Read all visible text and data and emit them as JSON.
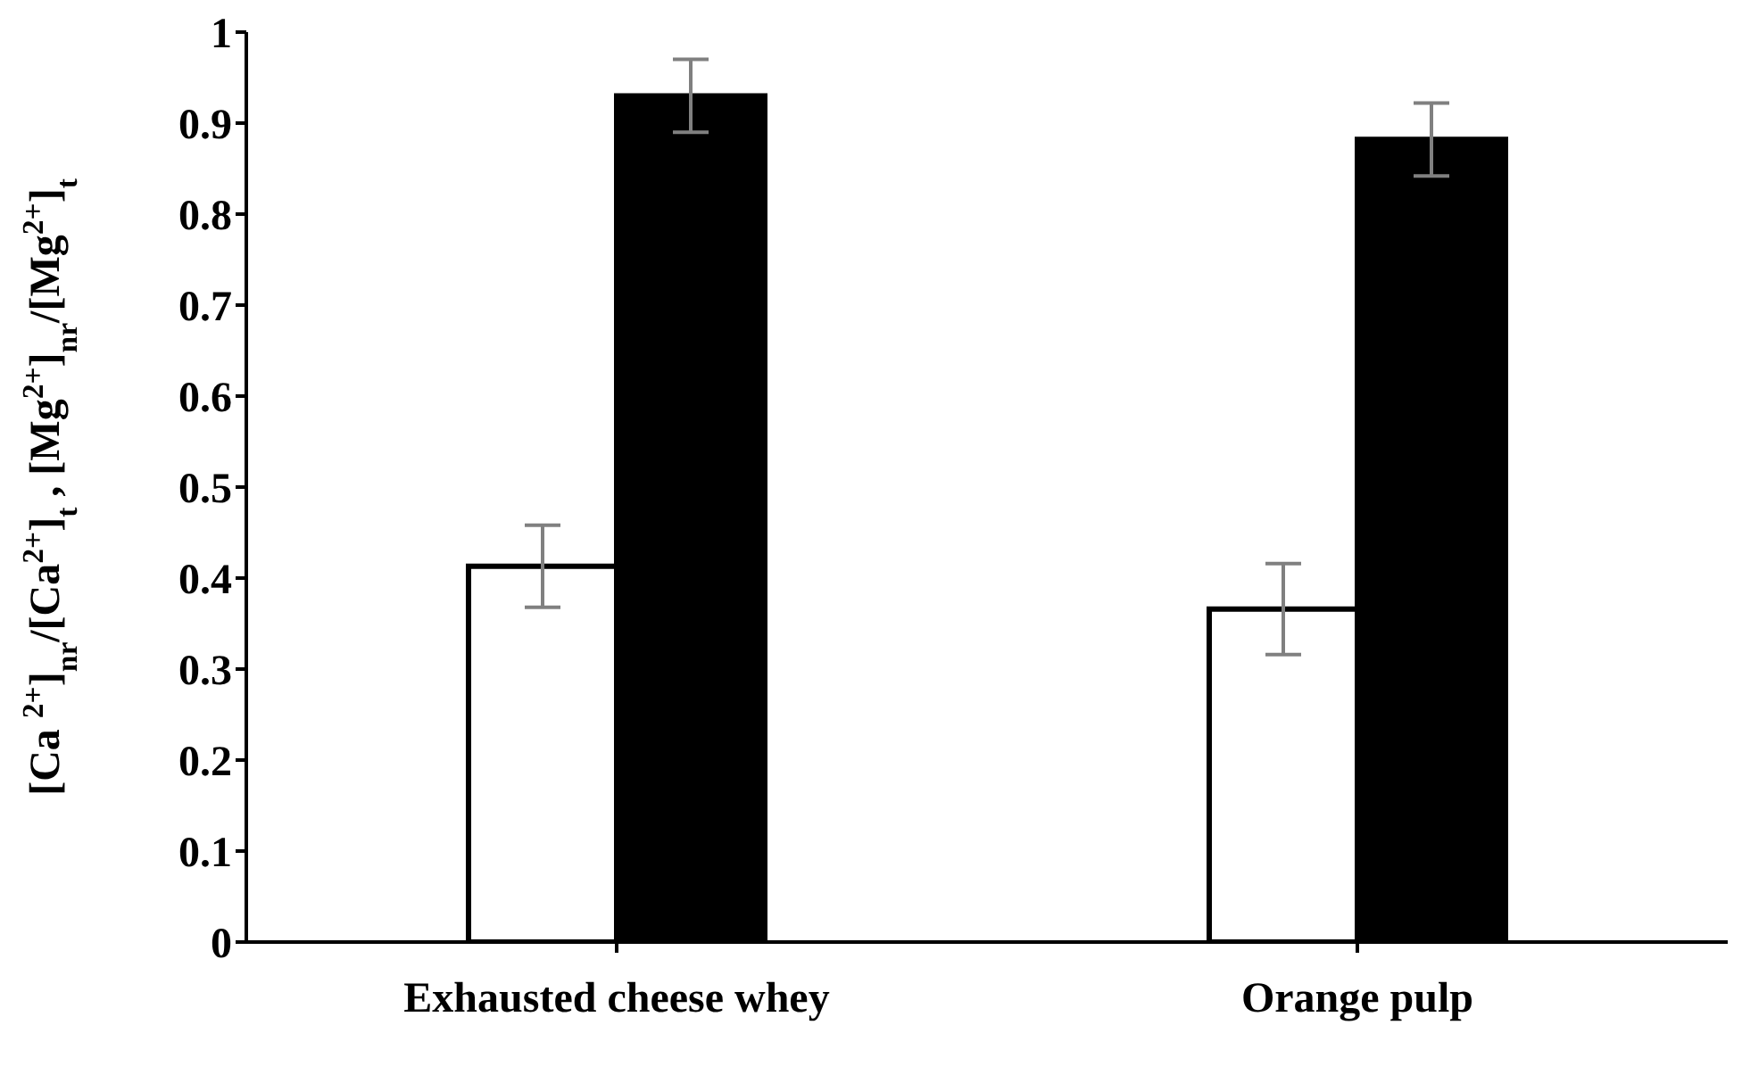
{
  "chart_data": {
    "type": "bar",
    "ylabel": "[Ca $^{2+}$]$_{nr}$/[Ca$^{2+}$]$_{t}$ , [Mg$^{2+}$]$_{nr}$/[Mg$^{2+}$]$_{t}$",
    "categories": [
      "Exhausted  cheese whey",
      "Orange pulp"
    ],
    "series": [
      {
        "color": "#ffffff",
        "values": [
          0.413,
          0.366
        ],
        "errors": [
          0.045,
          0.05
        ]
      },
      {
        "color": "#000000",
        "values": [
          0.93,
          0.882
        ],
        "errors": [
          0.04,
          0.04
        ]
      }
    ],
    "ylim": [
      0,
      1
    ],
    "yticks": [
      0,
      0.1,
      0.2,
      0.3,
      0.4,
      0.5,
      0.6,
      0.7,
      0.8,
      0.9,
      1
    ],
    "grid": false,
    "legend": false
  }
}
